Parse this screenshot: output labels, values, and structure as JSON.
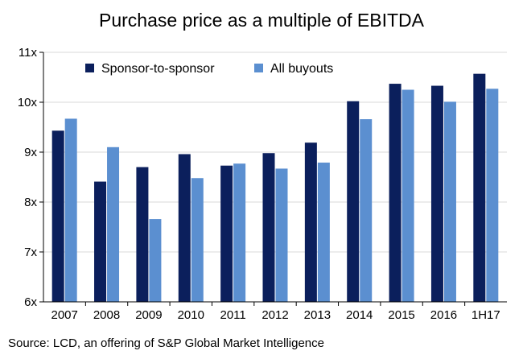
{
  "chart_data": {
    "type": "bar",
    "title": "Purchase price as a multiple of EBITDA",
    "xlabel": "",
    "ylabel": "",
    "categories": [
      "2007",
      "2008",
      "2009",
      "2010",
      "2011",
      "2012",
      "2013",
      "2014",
      "2015",
      "2016",
      "1H17"
    ],
    "series": [
      {
        "name": "Sponsor-to-sponsor",
        "color": "#0b1f5c",
        "values": [
          9.43,
          8.41,
          8.7,
          8.96,
          8.73,
          8.98,
          9.19,
          10.02,
          10.37,
          10.33,
          10.57
        ]
      },
      {
        "name": "All buyouts",
        "color": "#5b8fd0",
        "values": [
          9.67,
          9.1,
          7.66,
          8.48,
          8.77,
          8.67,
          8.79,
          9.66,
          10.25,
          10.01,
          10.27
        ]
      }
    ],
    "ylim": [
      6,
      11
    ],
    "yticks": [
      6,
      7,
      8,
      9,
      10,
      11
    ],
    "ytick_labels": [
      "6x",
      "7x",
      "8x",
      "9x",
      "10x",
      "11x"
    ],
    "grid": true,
    "legend_position": "top-left"
  },
  "source": "Source: LCD, an offering of S&P Global Market Intelligence"
}
